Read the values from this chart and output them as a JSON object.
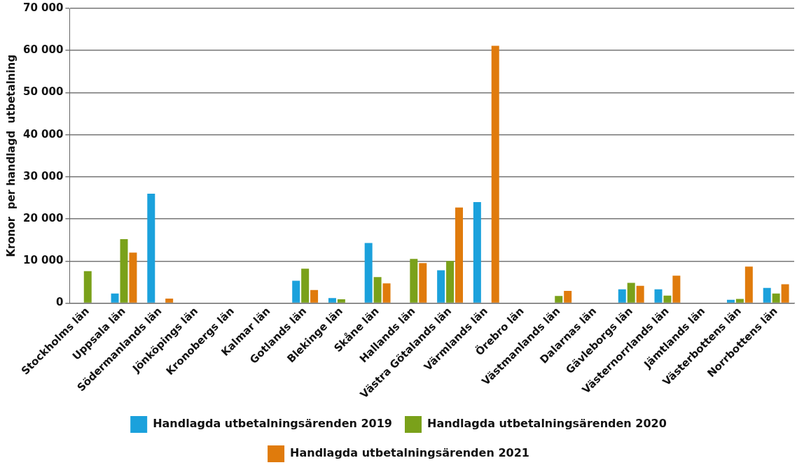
{
  "chart_data": {
    "type": "bar",
    "ylabel": "Kronor  per handlagd  utbetalning",
    "categories": [
      "Stockholms län",
      "Uppsala län",
      "Södermanlands län",
      "Jönköpings län",
      "Kronobergs län",
      "Kalmar län",
      "Gotlands län",
      "Blekinge län",
      "Skåne län",
      "Hallands län",
      "Västra Götalands län",
      "Värmlands län",
      "Örebro län",
      "Västmanlands län",
      "Dalarnas län",
      "Gävleborgs län",
      "Västernorrlands län",
      "Jämtlands län",
      "Västerbottens län",
      "Norrbottens län"
    ],
    "series": [
      {
        "name": "Handlagda utbetalningsärenden 2019",
        "color": "#1ba1dc",
        "values": [
          null,
          2300,
          26000,
          null,
          null,
          null,
          5300,
          1200,
          14300,
          null,
          7800,
          24000,
          null,
          null,
          null,
          3300,
          3300,
          null,
          800,
          3600
        ]
      },
      {
        "name": "Handlagda utbetalningsärenden 2020",
        "color": "#7aa11a",
        "values": [
          7600,
          15200,
          null,
          null,
          null,
          null,
          8200,
          900,
          6200,
          10500,
          10000,
          null,
          null,
          1700,
          null,
          4800,
          1800,
          null,
          1000,
          2300
        ]
      },
      {
        "name": "Handlagda utbetalningsärenden 2021",
        "color": "#e07b0c",
        "values": [
          null,
          12000,
          1100,
          null,
          null,
          null,
          3100,
          null,
          4700,
          9500,
          22700,
          61100,
          null,
          2900,
          null,
          4100,
          6500,
          null,
          8700,
          4500
        ]
      }
    ],
    "ylim": [
      0,
      70000
    ],
    "yticks": [
      {
        "value": 0,
        "label": "0"
      },
      {
        "value": 10000,
        "label": "10 000"
      },
      {
        "value": 20000,
        "label": "20 000"
      },
      {
        "value": 30000,
        "label": "30 000"
      },
      {
        "value": 40000,
        "label": "40 000"
      },
      {
        "value": 50000,
        "label": "50 000"
      },
      {
        "value": 60000,
        "label": "60 000"
      },
      {
        "value": 70000,
        "label": "70 000"
      }
    ],
    "grid": "y",
    "legend": "bottom"
  }
}
